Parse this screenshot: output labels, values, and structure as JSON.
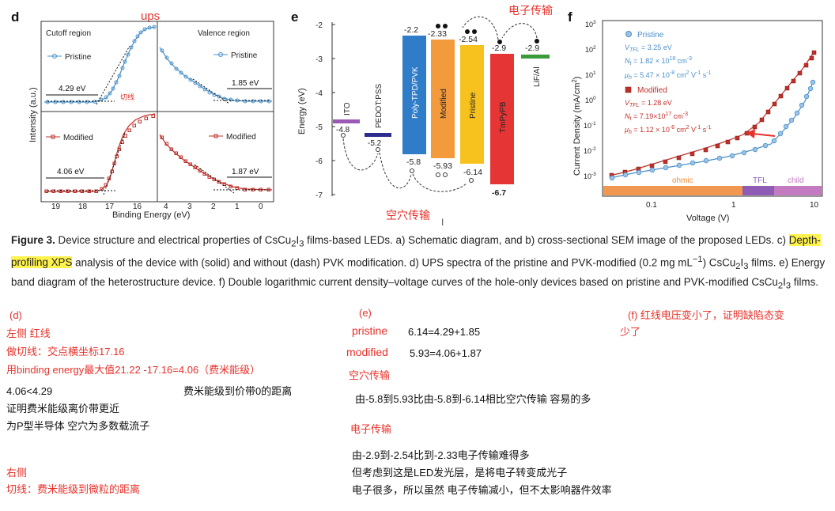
{
  "figure": {
    "panel_d": {
      "letter": "d",
      "annotation_ups": "ups",
      "annotation_cut": "切线",
      "top_left_title": "Cutoff region",
      "top_right_title": "Valence region",
      "bottom_left_label": "4.06 eV",
      "bottom_right_label": "1.87 eV",
      "top_left_label": "4.29 eV",
      "top_right_label": "1.85 eV",
      "legend_pristine": "Pristine",
      "legend_modified": "Modified",
      "ylabel": "Intensity (a.u.)",
      "xlabel": "Binding Energy (eV)",
      "left_ticks": [
        "19",
        "18",
        "17",
        "16"
      ],
      "right_ticks": [
        "4",
        "3",
        "2",
        "1",
        "0"
      ],
      "colors": {
        "pristine": "#4a90c8",
        "modified": "#c0302a",
        "cut": "#e8312a"
      }
    },
    "panel_e": {
      "letter": "e",
      "annotation_electron": "电子传输",
      "annotation_hole": "空穴传输",
      "ylabel": "Energy (eV)",
      "yticks": [
        "-2",
        "-3",
        "-4",
        "-5",
        "-6",
        "-7"
      ],
      "layers": [
        {
          "name": "ITO",
          "top": "-4.8",
          "bottom": "",
          "color": "#9b59b6"
        },
        {
          "name": "PEDOT:PSS",
          "top": "-5.2",
          "bottom": "",
          "color": "#2d2d8f"
        },
        {
          "name": "Poly-TPD/PVK",
          "top": "-2.2",
          "bottom": "-5.8",
          "color": "#2f7cc9"
        },
        {
          "name": "Modified",
          "top": "-2.33",
          "bottom": "-5.93",
          "color": "#f39a3c"
        },
        {
          "name": "Pristine",
          "top": "-2.54",
          "bottom": "-6.14",
          "color": "#f7c21d"
        },
        {
          "name": "TmPyPB",
          "top": "-2.9",
          "bottom": "-6.7",
          "color": "#e53535"
        },
        {
          "name": "LiF/Al",
          "top": "-2.9",
          "bottom": "",
          "color": "#3b9b3b"
        }
      ]
    },
    "panel_f": {
      "letter": "f",
      "legend_pristine": "Pristine",
      "legend_modified": "Modified",
      "p_vtfl": "V",
      "p_vtfl_sub": "TFL",
      "p_vtfl_val": " = 3.25 eV",
      "p_nt": "N",
      "p_nt_sub": "t",
      "p_nt_val": " = 1.82 × 10",
      "p_nt_exp": "18",
      "p_nt_unit": " cm",
      "p_mu": "μ",
      "p_mu_sub": "h",
      "p_mu_val": " = 5.47 × 10",
      "p_mu_exp": "-8",
      "p_mu_unit": " cm",
      "p_mu_unit2": " V",
      "p_mu_unit3": " s",
      "m_vtfl_val": " = 1.28 eV",
      "m_nt_val": " = 7.19×10",
      "m_nt_exp": "17",
      "m_mu_val": " = 1.12 × 10",
      "m_mu_exp": "-6",
      "exp_m3": "-3",
      "exp_2": "2",
      "exp_m1": "-1",
      "ylabel": "Current Density (mA/cm",
      "ylabel_sup": "2",
      "ylabel_end": ")",
      "xlabel": "Voltage (V)",
      "xticks": [
        "0.1",
        "1",
        "10"
      ],
      "ytick_base": "10",
      "ytick_exps": [
        "3",
        "2",
        "1",
        "0",
        "-1",
        "-2",
        "-3"
      ],
      "region_ohmic": "ohmic",
      "region_tfl": "TFL",
      "region_child": "child",
      "colors": {
        "pristine": "#4a90c8",
        "modified": "#c0302a",
        "ohmic": "#f08c3c",
        "tfl": "#8e5bb5",
        "child": "#c47ac0"
      }
    }
  },
  "caption": {
    "label": "Figure 3.",
    "part1": " Device structure and electrical properties of CsCu",
    "sub2": "2",
    "part1b": "I",
    "sub3": "3",
    "part2": " films-based LEDs. a) Schematic diagram, and b) cross-sectional SEM image of the proposed LEDs. c) ",
    "highlight": "Depth-profiling XPS",
    "part3": " analysis of the device with (solid) and without (dash) PVK modification. d) UPS spectra of the pristine and PVK-modified (0.2 mg mL",
    "sup_m1": "−1",
    "part4": ") CsCu",
    "sub2b": "2",
    "part4b": "I",
    "sub3b": "3",
    "part5": " films. e) Energy band diagram of the heterostructure device. f) Double logarithmic current density–voltage curves of the hole-only devices based on pristine and PVK-modified CsCu",
    "sub2c": "2",
    "part5b": "I",
    "sub3c": "3",
    "part6": " films."
  },
  "notes": {
    "d_label": "(d)",
    "left_side": "左侧  红线",
    "cut_line": "做切线：交点横坐标17.16",
    "binding": "用binding energy最大值21.22 -17.16=4.06（费米能级）",
    "compare": "4.06<4.29",
    "fermi_to_vb": "费米能级到价带0的距离",
    "proof1": "证明费米能级离价带更近",
    "proof2": "为P型半导体 空穴为多数载流子",
    "right_side": "右侧",
    "right_cut": "切线：费米能级到微粒的距离",
    "e_label": "(e)",
    "pristine_label": "pristine",
    "pristine_eq": "6.14=4.29+1.85",
    "modified_label": "modified",
    "modified_eq": "5.93=4.06+1.87",
    "hole_title": "空穴传输",
    "hole_text": "由-5.8到5.93比由-5.8到-6.14相比空穴传输 容易的多",
    "electron_title": "电子传输",
    "electron_1": "由-2.9到-2.54比到-2.33电子传输难得多",
    "electron_2": "但考虑到这是LED发光层，是将电子转变成光子",
    "electron_3": "电子很多，所以虽然 电子传输减小，但不太影响器件效率",
    "f_line1": "(f)  红线电压变小了，证明缺陷态变",
    "f_line2": "少了"
  }
}
